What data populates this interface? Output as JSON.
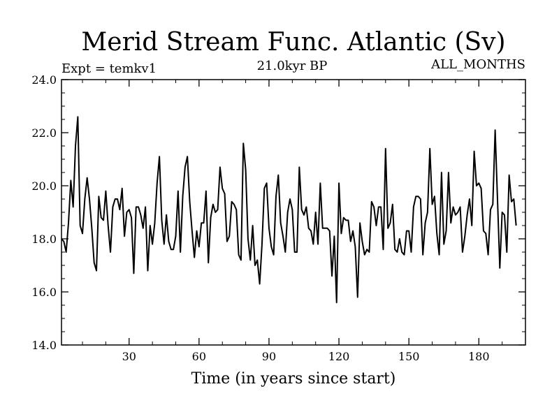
{
  "chart_data": {
    "type": "line",
    "title": "Merid Stream Func. Atlantic (Sv)",
    "subtitle": "21.0kyr BP",
    "left_label": "Expt = temkv1",
    "right_label": "ALL_MONTHS",
    "xlabel": "Time (in years since start)",
    "ylabel": "",
    "xlim": [
      1,
      200
    ],
    "ylim": [
      14.0,
      24.0
    ],
    "xticks": [
      30,
      60,
      90,
      120,
      150,
      180
    ],
    "yticks": [
      "14.0",
      "16.0",
      "18.0",
      "20.0",
      "22.0",
      "24.0"
    ],
    "grid": false,
    "series": [
      {
        "name": "Merid Stream Func. Atlantic",
        "color": "#000000",
        "x_start": 1,
        "x_step": 1,
        "values": [
          18.0,
          17.9,
          17.5,
          18.6,
          20.2,
          19.2,
          21.5,
          22.6,
          18.5,
          18.2,
          19.5,
          20.3,
          19.5,
          18.4,
          17.1,
          16.8,
          19.6,
          18.8,
          18.7,
          19.8,
          18.5,
          17.5,
          19.2,
          19.5,
          19.5,
          19.1,
          19.9,
          18.1,
          19.0,
          19.1,
          18.8,
          16.7,
          19.2,
          19.2,
          18.9,
          18.4,
          19.2,
          16.8,
          18.5,
          17.8,
          18.6,
          20.1,
          21.1,
          18.7,
          17.8,
          18.9,
          17.9,
          17.6,
          17.6,
          18.1,
          19.8,
          17.5,
          19.6,
          20.7,
          21.1,
          19.4,
          18.3,
          17.3,
          18.3,
          17.7,
          18.6,
          18.6,
          19.8,
          17.1,
          18.8,
          19.3,
          19.0,
          19.1,
          20.7,
          19.9,
          19.7,
          17.9,
          18.1,
          19.4,
          19.3,
          19.1,
          17.4,
          17.2,
          21.6,
          20.6,
          18.0,
          17.2,
          18.5,
          17.0,
          17.2,
          16.3,
          17.8,
          19.9,
          20.1,
          18.4,
          17.7,
          17.4,
          19.6,
          20.4,
          18.6,
          18.1,
          17.5,
          19.0,
          19.5,
          19.1,
          17.5,
          17.5,
          20.7,
          19.1,
          18.9,
          19.2,
          18.4,
          18.3,
          17.8,
          19.0,
          17.8,
          20.1,
          18.4,
          18.4,
          18.4,
          18.3,
          16.6,
          18.1,
          15.6,
          20.1,
          18.2,
          18.8,
          18.7,
          18.7,
          17.9,
          18.3,
          17.7,
          15.8,
          18.6,
          17.9,
          17.4,
          17.6,
          17.5,
          19.4,
          19.2,
          18.5,
          19.2,
          19.2,
          17.6,
          21.4,
          18.4,
          18.6,
          19.3,
          17.6,
          17.5,
          18.0,
          17.5,
          17.4,
          18.3,
          18.3,
          17.5,
          19.2,
          19.6,
          19.6,
          19.5,
          17.4,
          18.6,
          19.0,
          21.4,
          19.3,
          19.6,
          18.2,
          17.4,
          20.5,
          17.8,
          18.3,
          20.5,
          18.6,
          19.2,
          18.9,
          19.0,
          19.2,
          17.5,
          18.1,
          18.9,
          19.5,
          18.5,
          21.3,
          20.0,
          20.1,
          19.9,
          18.3,
          18.2,
          17.4,
          19.1,
          19.3,
          22.1,
          19.5,
          16.9,
          19.0,
          18.9,
          17.5,
          20.4,
          19.4,
          19.5,
          18.5
        ]
      }
    ]
  }
}
